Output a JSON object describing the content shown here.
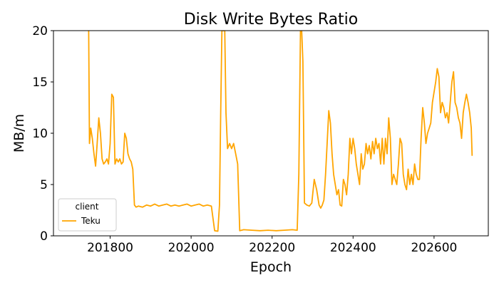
{
  "chart_data": {
    "type": "line",
    "title": "Disk Write Bytes Ratio",
    "xlabel": "Epoch",
    "ylabel": "MB/m",
    "xlim": [
      201660,
      202734
    ],
    "ylim": [
      0,
      20
    ],
    "xticks": [
      201800,
      202000,
      202200,
      202400,
      202600
    ],
    "yticks": [
      0,
      5,
      10,
      15,
      20
    ],
    "grid": false,
    "legend": {
      "title": "client",
      "placement": "lower-left"
    },
    "colors": {
      "series": "#ffa500"
    },
    "series": [
      {
        "name": "Teku",
        "x": [
          201747,
          201748,
          201749,
          201752,
          201756,
          201760,
          201764,
          201768,
          201772,
          201776,
          201780,
          201784,
          201788,
          201792,
          201796,
          201800,
          201804,
          201808,
          201812,
          201816,
          201820,
          201824,
          201828,
          201832,
          201836,
          201840,
          201844,
          201848,
          201852,
          201856,
          201860,
          201864,
          201870,
          201880,
          201890,
          201900,
          201910,
          201920,
          201930,
          201940,
          201950,
          201960,
          201970,
          201980,
          201990,
          202000,
          202010,
          202020,
          202030,
          202040,
          202050,
          202058,
          202066,
          202070,
          202073,
          202076,
          202080,
          202083,
          202086,
          202090,
          202095,
          202100,
          202105,
          202110,
          202115,
          202120,
          202130,
          202150,
          202170,
          202190,
          202210,
          202230,
          202250,
          202262,
          202266,
          202270,
          202273,
          202276,
          202280,
          202286,
          202292,
          202298,
          202304,
          202310,
          202316,
          202320,
          202324,
          202328,
          202332,
          202336,
          202340,
          202344,
          202348,
          202352,
          202356,
          202360,
          202364,
          202368,
          202372,
          202376,
          202380,
          202384,
          202388,
          202392,
          202396,
          202400,
          202404,
          202408,
          202412,
          202416,
          202420,
          202424,
          202428,
          202432,
          202436,
          202440,
          202444,
          202448,
          202452,
          202456,
          202460,
          202464,
          202468,
          202472,
          202476,
          202480,
          202484,
          202488,
          202492,
          202496,
          202500,
          202504,
          202508,
          202512,
          202516,
          202520,
          202524,
          202528,
          202532,
          202536,
          202540,
          202544,
          202548,
          202552,
          202556,
          202560,
          202564,
          202568,
          202572,
          202576,
          202580,
          202584,
          202588,
          202592,
          202596,
          202600,
          202604,
          202608,
          202612,
          202616,
          202620,
          202624,
          202628,
          202632,
          202636,
          202640,
          202644,
          202648,
          202652,
          202656,
          202660,
          202664,
          202668,
          202672,
          202676,
          202680,
          202684,
          202688,
          202692,
          202694
        ],
        "values": [
          20,
          14,
          9,
          10.5,
          9.5,
          8,
          6.8,
          9,
          11.5,
          10,
          7.5,
          7,
          7.2,
          7.5,
          7,
          9,
          13.8,
          13.5,
          7,
          7.5,
          7.2,
          7.5,
          7,
          7.2,
          10,
          9.5,
          8,
          7.5,
          7.2,
          6.5,
          3,
          2.8,
          2.9,
          2.8,
          3.0,
          2.9,
          3.1,
          2.9,
          3.0,
          3.1,
          2.9,
          3.0,
          2.9,
          3.0,
          3.1,
          2.9,
          3.0,
          3.1,
          2.9,
          3.0,
          2.9,
          0.5,
          0.45,
          3,
          12,
          20,
          20,
          20,
          12,
          8.5,
          9,
          8.5,
          9,
          8,
          7,
          0.5,
          0.6,
          0.55,
          0.5,
          0.55,
          0.5,
          0.55,
          0.6,
          0.55,
          6,
          20,
          20,
          17,
          3.2,
          3,
          2.9,
          3.2,
          5.5,
          4.5,
          3,
          2.7,
          3,
          3.5,
          6,
          9,
          12.2,
          11,
          8,
          6,
          5,
          4,
          4.5,
          3,
          2.9,
          5.5,
          5,
          4,
          6,
          9.5,
          8,
          9.5,
          8.5,
          7,
          6,
          5,
          8,
          6.5,
          7,
          9,
          8,
          8.8,
          7.5,
          9.2,
          8,
          9.5,
          8.5,
          9,
          7,
          9.5,
          7,
          9.5,
          8,
          11.5,
          9.5,
          5,
          6,
          5.5,
          5,
          7,
          9.5,
          9,
          6,
          5,
          4.5,
          6.5,
          5,
          6,
          5,
          7,
          6,
          5.5,
          5.5,
          9.5,
          12.5,
          11,
          9,
          10,
          10.5,
          11,
          13,
          14,
          15,
          16.3,
          15.5,
          12,
          13,
          12.5,
          11.5,
          12,
          11,
          13,
          15,
          16,
          13,
          12.5,
          11.5,
          11,
          9.5,
          12,
          13,
          13.8,
          13,
          12,
          10.5,
          7.8
        ]
      }
    ]
  }
}
